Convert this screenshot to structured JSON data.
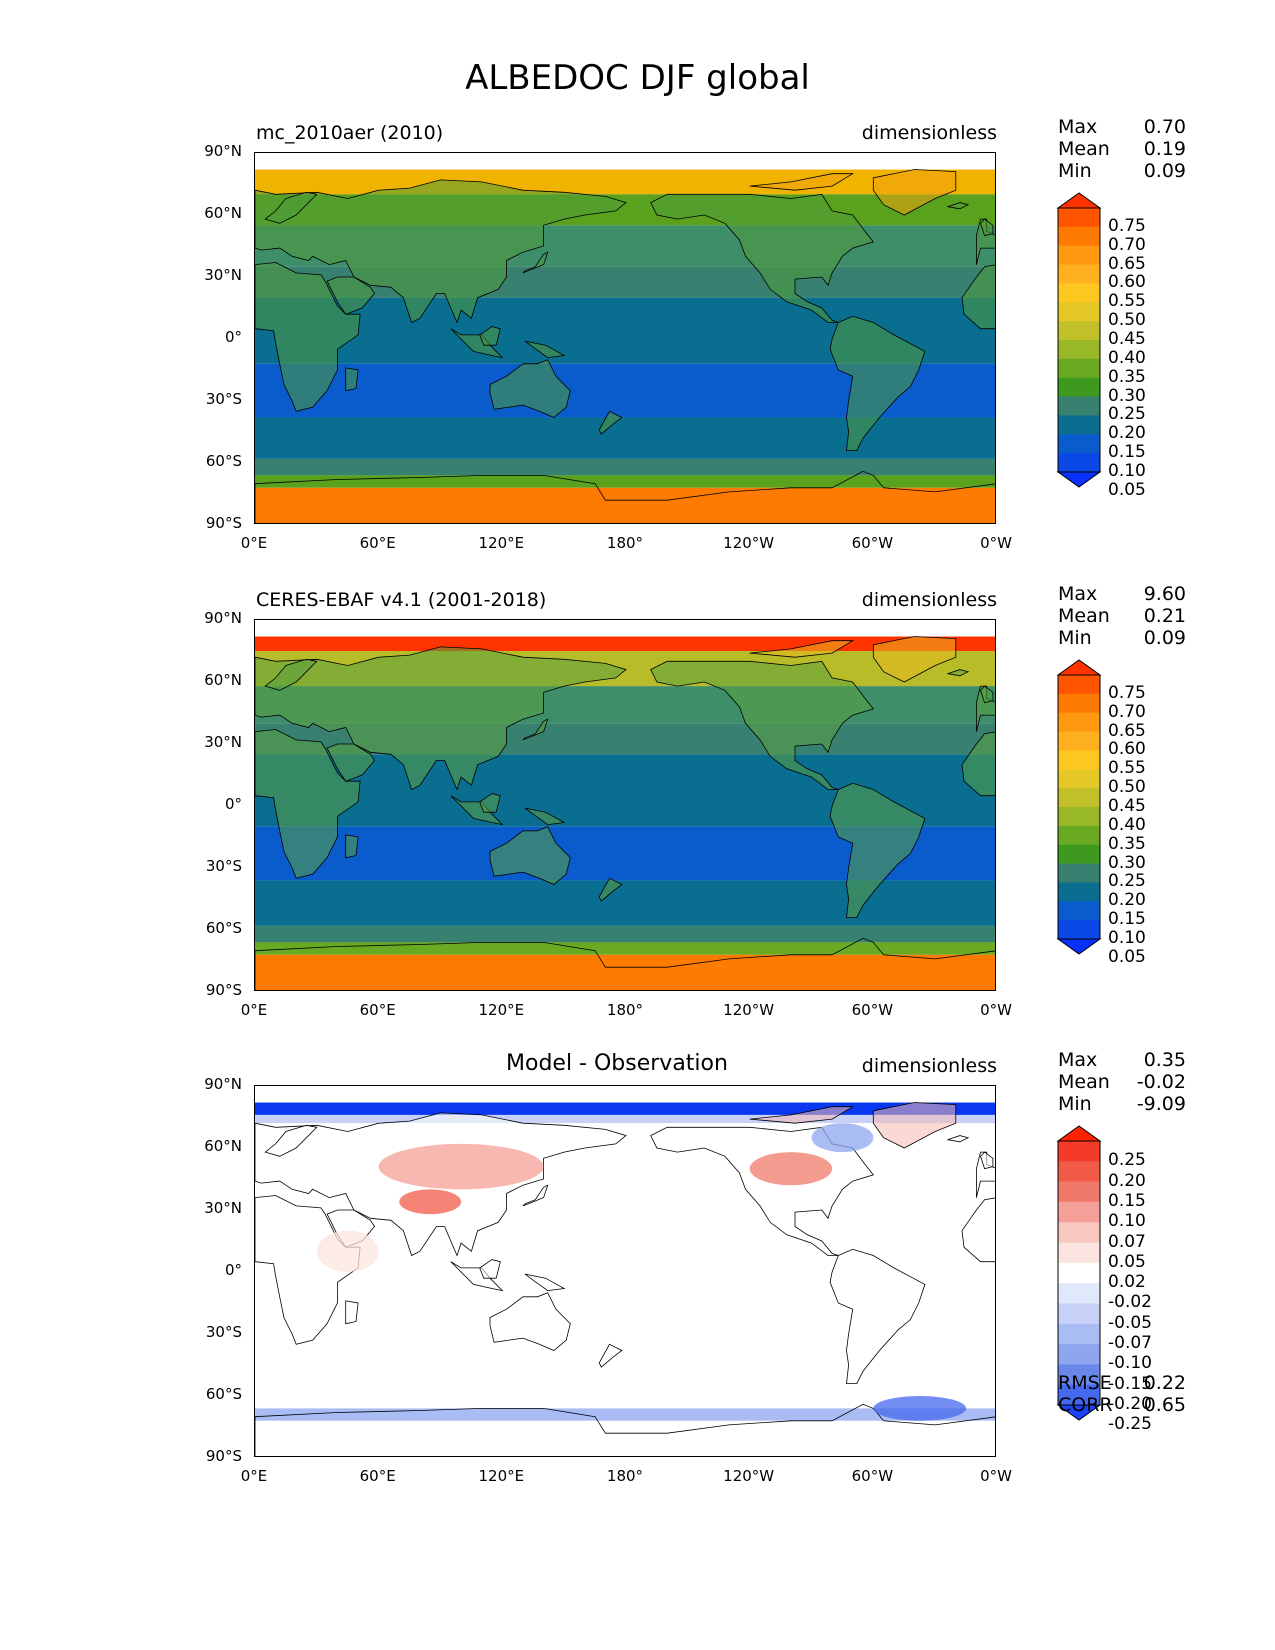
{
  "title": "ALBEDOC DJF global",
  "y_ticks": [
    "90°N",
    "60°N",
    "30°N",
    "0°",
    "30°S",
    "60°S",
    "90°S"
  ],
  "x_ticks": [
    "0°E",
    "60°E",
    "120°E",
    "180°",
    "120°W",
    "60°W",
    "0°W"
  ],
  "panels": [
    {
      "left_title": "mc_2010aer (2010)",
      "center_title": "",
      "right_title": "dimensionless",
      "stats": {
        "max_label": "Max",
        "max": "0.70",
        "mean_label": "Mean",
        "mean": "0.19",
        "min_label": "Min",
        "min": "0.09"
      },
      "colorbar": {
        "labels": [
          "0.75",
          "0.70",
          "0.65",
          "0.60",
          "0.55",
          "0.50",
          "0.45",
          "0.40",
          "0.35",
          "0.30",
          "0.25",
          "0.20",
          "0.15",
          "0.10",
          "0.05"
        ],
        "colors": [
          "#ff3300",
          "#ff5500",
          "#ff7a00",
          "#ff9a10",
          "#ffb020",
          "#ffc820",
          "#e4c828",
          "#c2c028",
          "#98b828",
          "#6aaa22",
          "#3e9a1e",
          "#388070",
          "#0a6e90",
          "#0a5ccc",
          "#0a48e8",
          "#0a30ff"
        ]
      },
      "bands": [
        {
          "lat": [
            82,
            90
          ],
          "color": "#ffffff"
        },
        {
          "lat": [
            70,
            82
          ],
          "color": "#f0b400"
        },
        {
          "lat": [
            55,
            70
          ],
          "color": "#5aa21e"
        },
        {
          "lat": [
            35,
            55
          ],
          "color": "#3e8e6a"
        },
        {
          "lat": [
            20,
            35
          ],
          "color": "#388070"
        },
        {
          "lat": [
            -12,
            20
          ],
          "color": "#0a6e90"
        },
        {
          "lat": [
            -38,
            -12
          ],
          "color": "#0a5ccc"
        },
        {
          "lat": [
            -58,
            -38
          ],
          "color": "#0a6e90"
        },
        {
          "lat": [
            -66,
            -58
          ],
          "color": "#388070"
        },
        {
          "lat": [
            -72,
            -66
          ],
          "color": "#5aa21e"
        },
        {
          "lat": [
            -90,
            -72
          ],
          "color": "#ff7a00"
        }
      ],
      "land_color": "#4e9a3a",
      "land_highlat_color": "#f2a010"
    },
    {
      "left_title": "CERES-EBAF v4.1 (2001-2018)",
      "center_title": "",
      "right_title": "dimensionless",
      "stats": {
        "max_label": "Max",
        "max": "9.60",
        "mean_label": "Mean",
        "mean": "0.21",
        "min_label": "Min",
        "min": "0.09"
      },
      "colorbar": {
        "labels": [
          "0.75",
          "0.70",
          "0.65",
          "0.60",
          "0.55",
          "0.50",
          "0.45",
          "0.40",
          "0.35",
          "0.30",
          "0.25",
          "0.20",
          "0.15",
          "0.10",
          "0.05"
        ],
        "colors": [
          "#ff3300",
          "#ff5500",
          "#ff7a00",
          "#ff9a10",
          "#ffb020",
          "#ffc820",
          "#e4c828",
          "#c2c028",
          "#98b828",
          "#6aaa22",
          "#3e9a1e",
          "#388070",
          "#0a6e90",
          "#0a5ccc",
          "#0a48e8",
          "#0a30ff"
        ]
      },
      "bands": [
        {
          "lat": [
            82,
            90
          ],
          "color": "#ffffff"
        },
        {
          "lat": [
            75,
            82
          ],
          "color": "#ff3300"
        },
        {
          "lat": [
            58,
            75
          ],
          "color": "#b8bc28"
        },
        {
          "lat": [
            40,
            58
          ],
          "color": "#3e8e6a"
        },
        {
          "lat": [
            25,
            40
          ],
          "color": "#388070"
        },
        {
          "lat": [
            -10,
            25
          ],
          "color": "#0a6e90"
        },
        {
          "lat": [
            -36,
            -10
          ],
          "color": "#0a5ccc"
        },
        {
          "lat": [
            -58,
            -36
          ],
          "color": "#0a6e90"
        },
        {
          "lat": [
            -66,
            -58
          ],
          "color": "#388070"
        },
        {
          "lat": [
            -72,
            -66
          ],
          "color": "#6aaa22"
        },
        {
          "lat": [
            -90,
            -72
          ],
          "color": "#ff7a00"
        }
      ],
      "land_color": "#5aa040",
      "land_highlat_color": "#e8b820"
    },
    {
      "left_title": "",
      "center_title": "Model - Observation",
      "right_title": "dimensionless",
      "stats": {
        "max_label": "Max",
        "max": "0.35",
        "mean_label": "Mean",
        "mean": "-0.02",
        "min_label": "Min",
        "min": "-9.09"
      },
      "colorbar": {
        "labels": [
          "0.25",
          "0.20",
          "0.15",
          "0.10",
          "0.07",
          "0.05",
          "0.02",
          "-0.02",
          "-0.05",
          "-0.07",
          "-0.10",
          "-0.15",
          "-0.20",
          "-0.25"
        ],
        "colors": [
          "#ff2200",
          "#f43b2a",
          "#f25a48",
          "#f07a6a",
          "#f4a098",
          "#f8c8c0",
          "#fce4e0",
          "#ffffff",
          "#e2e8fc",
          "#c8d2f8",
          "#aabcf4",
          "#8ea6f0",
          "#6a88ea",
          "#4468ee",
          "#1a44f4"
        ]
      },
      "bands": [
        {
          "lat": [
            82,
            90
          ],
          "color": "#ffffff"
        },
        {
          "lat": [
            76,
            82
          ],
          "color": "#0a38f0"
        },
        {
          "lat": [
            72,
            76
          ],
          "color": "#c8d2f8"
        },
        {
          "lat": [
            -66,
            72
          ],
          "color": "#ffffff"
        },
        {
          "lat": [
            -72,
            -66
          ],
          "color": "#aabcf4"
        },
        {
          "lat": [
            -90,
            -72
          ],
          "color": "#ffffff"
        }
      ],
      "land_color": "#ffffff",
      "land_highlat_color": "#f6b8b0"
    }
  ],
  "bottom_stats": {
    "rmse_label": "RMSE",
    "rmse": "0.22",
    "corr_label": "CORR",
    "corr": "0.65"
  }
}
